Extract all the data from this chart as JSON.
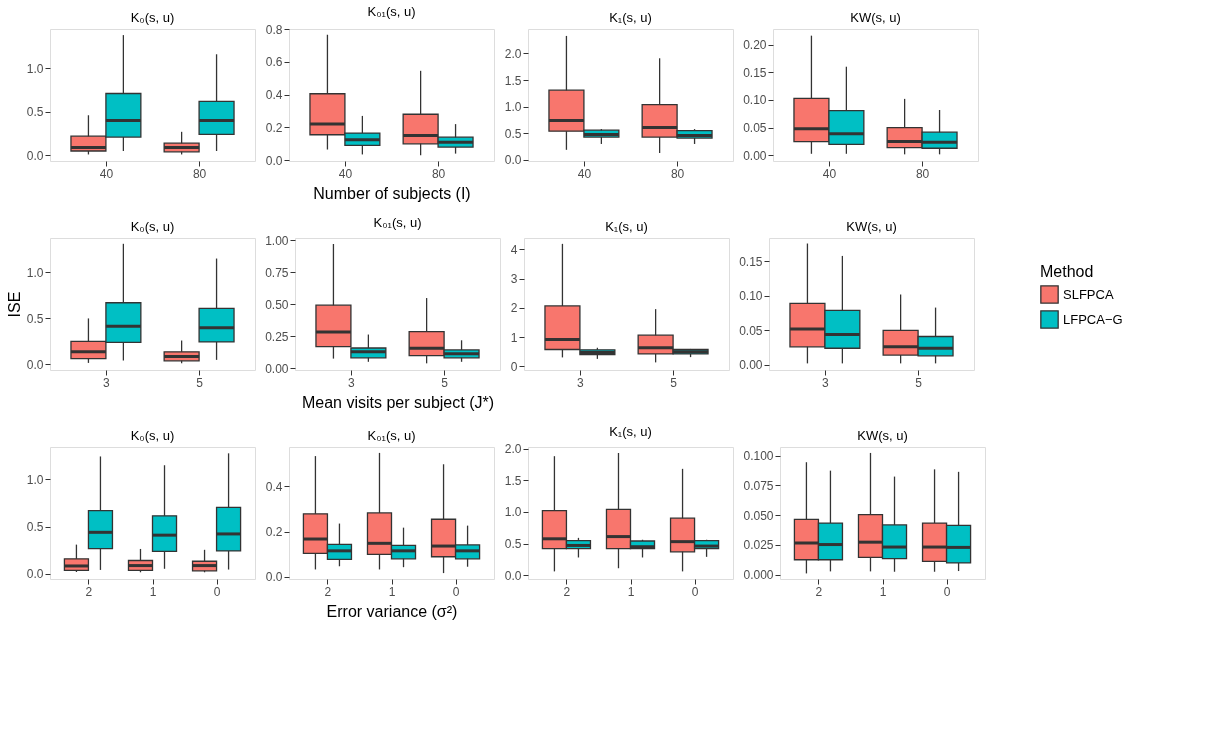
{
  "chart_data": [
    {
      "type": "box",
      "title": "K₀(s, u)",
      "legend": "right",
      "legend_title": "Method",
      "categories": [
        "40",
        "80"
      ],
      "ylim": [
        -0.065,
        1.45
      ],
      "yticks": [
        {
          "value": 0,
          "label": "0.0"
        },
        0.5,
        {
          "value": 1,
          "label": "1.0"
        }
      ],
      "series": [
        {
          "name": "SLFPCA",
          "color": "#f8766d",
          "boxes": [
            {
              "low": 0.01,
              "q1": 0.05,
              "median": 0.09,
              "q3": 0.22,
              "high": 0.46
            },
            {
              "low": 0.01,
              "q1": 0.04,
              "median": 0.09,
              "q3": 0.14,
              "high": 0.27
            }
          ]
        },
        {
          "name": "LFPCA−G",
          "color": "#00bfc4",
          "boxes": [
            {
              "low": 0.05,
              "q1": 0.21,
              "median": 0.4,
              "q3": 0.71,
              "high": 1.38
            },
            {
              "low": 0.05,
              "q1": 0.24,
              "median": 0.4,
              "q3": 0.62,
              "high": 1.16
            }
          ]
        }
      ]
    },
    {
      "type": "box",
      "title": "K₀₁(s, u)",
      "xlabel": "Number of subjects (I)",
      "categories": [
        "40",
        "80"
      ],
      "ylim": [
        -0.005,
        0.8
      ],
      "yticks": [
        {
          "value": 0,
          "label": "0.0"
        },
        0.2,
        0.4,
        0.6,
        0.8
      ],
      "series": [
        {
          "name": "SLFPCA",
          "color": "#f8766d",
          "boxes": [
            {
              "low": 0.065,
              "q1": 0.155,
              "median": 0.22,
              "q3": 0.405,
              "high": 0.765
            },
            {
              "low": 0.03,
              "q1": 0.1,
              "median": 0.15,
              "q3": 0.28,
              "high": 0.545
            }
          ]
        },
        {
          "name": "LFPCA−G",
          "color": "#00bfc4",
          "boxes": [
            {
              "low": 0.035,
              "q1": 0.09,
              "median": 0.125,
              "q3": 0.165,
              "high": 0.27
            },
            {
              "low": 0.04,
              "q1": 0.08,
              "median": 0.11,
              "q3": 0.14,
              "high": 0.22
            }
          ]
        }
      ]
    },
    {
      "type": "box",
      "title": "K₁(s, u)",
      "categories": [
        "40",
        "80"
      ],
      "ylim": [
        -0.02,
        2.46
      ],
      "yticks": [
        {
          "value": 0,
          "label": "0.0"
        },
        0.5,
        {
          "value": 1,
          "label": "1.0"
        },
        1.5,
        {
          "value": 2,
          "label": "2.0"
        }
      ],
      "series": [
        {
          "name": "SLFPCA",
          "color": "#f8766d",
          "boxes": [
            {
              "low": 0.19,
              "q1": 0.54,
              "median": 0.74,
              "q3": 1.31,
              "high": 2.33
            },
            {
              "low": 0.13,
              "q1": 0.43,
              "median": 0.61,
              "q3": 1.04,
              "high": 1.91
            }
          ]
        },
        {
          "name": "LFPCA−G",
          "color": "#00bfc4",
          "boxes": [
            {
              "low": 0.3,
              "q1": 0.43,
              "median": 0.48,
              "q3": 0.56,
              "high": 0.58
            },
            {
              "low": 0.3,
              "q1": 0.41,
              "median": 0.46,
              "q3": 0.55,
              "high": 0.58
            }
          ]
        }
      ]
    },
    {
      "type": "box",
      "title": "KW(s, u)",
      "categories": [
        "40",
        "80"
      ],
      "ylim": [
        -0.01,
        0.228
      ],
      "yticks": [
        {
          "value": 0,
          "label": "0.00"
        },
        0.05,
        {
          "value": 0.1,
          "label": "0.10"
        },
        0.15,
        {
          "value": 0.2,
          "label": "0.20"
        }
      ],
      "series": [
        {
          "name": "SLFPCA",
          "color": "#f8766d",
          "boxes": [
            {
              "low": 0.003,
              "q1": 0.025,
              "median": 0.048,
              "q3": 0.103,
              "high": 0.216
            },
            {
              "low": 0.002,
              "q1": 0.014,
              "median": 0.025,
              "q3": 0.05,
              "high": 0.102
            }
          ]
        },
        {
          "name": "LFPCA−G",
          "color": "#00bfc4",
          "boxes": [
            {
              "low": 0.003,
              "q1": 0.02,
              "median": 0.039,
              "q3": 0.081,
              "high": 0.16
            },
            {
              "low": 0.002,
              "q1": 0.013,
              "median": 0.024,
              "q3": 0.042,
              "high": 0.082
            }
          ]
        }
      ]
    },
    {
      "type": "box",
      "title": "K₀(s, u)",
      "ylabel": "ISE",
      "categories": [
        "3",
        "5"
      ],
      "ylim": [
        -0.06,
        1.373
      ],
      "yticks": [
        {
          "value": 0,
          "label": "0.0"
        },
        0.5,
        {
          "value": 1,
          "label": "1.0"
        }
      ],
      "series": [
        {
          "name": "SLFPCA",
          "color": "#f8766d",
          "boxes": [
            {
              "low": 0.017,
              "q1": 0.064,
              "median": 0.137,
              "q3": 0.25,
              "high": 0.5
            },
            {
              "low": 0.013,
              "q1": 0.04,
              "median": 0.086,
              "q3": 0.137,
              "high": 0.26
            }
          ]
        },
        {
          "name": "LFPCA−G",
          "color": "#00bfc4",
          "boxes": [
            {
              "low": 0.043,
              "q1": 0.24,
              "median": 0.416,
              "q3": 0.67,
              "high": 1.31
            },
            {
              "low": 0.05,
              "q1": 0.245,
              "median": 0.4,
              "q3": 0.61,
              "high": 1.15
            }
          ]
        }
      ]
    },
    {
      "type": "box",
      "title": "K₀₁(s, u)",
      "xlabel": "Mean visits per subject (J*)",
      "categories": [
        "3",
        "5"
      ],
      "ylim": [
        -0.012,
        1.019
      ],
      "yticks": [
        {
          "value": 0,
          "label": "0.00"
        },
        0.25,
        {
          "value": 0.5,
          "label": "0.50"
        },
        0.75,
        {
          "value": 1,
          "label": "1.00"
        }
      ],
      "series": [
        {
          "name": "SLFPCA",
          "color": "#f8766d",
          "boxes": [
            {
              "low": 0.077,
              "q1": 0.17,
              "median": 0.284,
              "q3": 0.494,
              "high": 0.972
            },
            {
              "low": 0.04,
              "q1": 0.1,
              "median": 0.157,
              "q3": 0.287,
              "high": 0.55
            }
          ]
        },
        {
          "name": "LFPCA−G",
          "color": "#00bfc4",
          "boxes": [
            {
              "low": 0.052,
              "q1": 0.083,
              "median": 0.13,
              "q3": 0.16,
              "high": 0.265
            },
            {
              "low": 0.052,
              "q1": 0.083,
              "median": 0.114,
              "q3": 0.145,
              "high": 0.22
            }
          ]
        }
      ]
    },
    {
      "type": "box",
      "title": "K₁(s, u)",
      "categories": [
        "3",
        "5"
      ],
      "ylim": [
        -0.12,
        4.39
      ],
      "yticks": [
        0,
        1,
        2,
        3,
        4
      ],
      "series": [
        {
          "name": "SLFPCA",
          "color": "#f8766d",
          "boxes": [
            {
              "low": 0.31,
              "q1": 0.58,
              "median": 0.92,
              "q3": 2.07,
              "high": 4.19
            },
            {
              "low": 0.14,
              "q1": 0.43,
              "median": 0.64,
              "q3": 1.07,
              "high": 1.96
            }
          ]
        },
        {
          "name": "LFPCA−G",
          "color": "#00bfc4",
          "boxes": [
            {
              "low": 0.26,
              "q1": 0.41,
              "median": 0.48,
              "q3": 0.57,
              "high": 0.64
            },
            {
              "low": 0.32,
              "q1": 0.43,
              "median": 0.5,
              "q3": 0.58,
              "high": 0.6
            }
          ]
        }
      ]
    },
    {
      "type": "box",
      "title": "KW(s, u)",
      "categories": [
        "3",
        "5"
      ],
      "ylim": [
        -0.0076,
        0.184
      ],
      "yticks": [
        {
          "value": 0,
          "label": "0.00"
        },
        0.05,
        {
          "value": 0.1,
          "label": "0.10"
        },
        0.15
      ],
      "series": [
        {
          "name": "SLFPCA",
          "color": "#f8766d",
          "boxes": [
            {
              "low": 0.002,
              "q1": 0.026,
              "median": 0.052,
              "q3": 0.089,
              "high": 0.176
            },
            {
              "low": 0.002,
              "q1": 0.014,
              "median": 0.026,
              "q3": 0.05,
              "high": 0.102
            }
          ]
        },
        {
          "name": "LFPCA−G",
          "color": "#00bfc4",
          "boxes": [
            {
              "low": 0.002,
              "q1": 0.024,
              "median": 0.044,
              "q3": 0.079,
              "high": 0.158
            },
            {
              "low": 0.002,
              "q1": 0.013,
              "median": 0.024,
              "q3": 0.041,
              "high": 0.083
            }
          ]
        }
      ]
    },
    {
      "type": "box",
      "title": "K₀(s, u)",
      "categories": [
        "2",
        "1",
        "0"
      ],
      "ylim": [
        -0.054,
        1.343
      ],
      "yticks": [
        {
          "value": 0,
          "label": "0.0"
        },
        0.5,
        {
          "value": 1,
          "label": "1.0"
        }
      ],
      "series": [
        {
          "name": "SLFPCA",
          "color": "#f8766d",
          "boxes": [
            {
              "low": 0.02,
              "q1": 0.037,
              "median": 0.084,
              "q3": 0.16,
              "high": 0.31
            },
            {
              "low": 0.017,
              "q1": 0.037,
              "median": 0.088,
              "q3": 0.142,
              "high": 0.264
            },
            {
              "low": 0.017,
              "q1": 0.033,
              "median": 0.088,
              "q3": 0.134,
              "high": 0.255
            }
          ]
        },
        {
          "name": "LFPCA−G",
          "color": "#00bfc4",
          "boxes": [
            {
              "low": 0.042,
              "q1": 0.268,
              "median": 0.44,
              "q3": 0.67,
              "high": 1.243
            },
            {
              "low": 0.054,
              "q1": 0.238,
              "median": 0.41,
              "q3": 0.615,
              "high": 1.15
            },
            {
              "low": 0.046,
              "q1": 0.243,
              "median": 0.423,
              "q3": 0.703,
              "high": 1.276
            }
          ]
        }
      ]
    },
    {
      "type": "box",
      "title": "K₀₁(s, u)",
      "xlabel": "Error variance (σ²)",
      "categories": [
        "2",
        "1",
        "0"
      ],
      "ylim": [
        -0.009,
        0.572
      ],
      "yticks": [
        {
          "value": 0,
          "label": "0.0"
        },
        0.2,
        0.4
      ],
      "series": [
        {
          "name": "SLFPCA",
          "color": "#f8766d",
          "boxes": [
            {
              "low": 0.033,
              "q1": 0.104,
              "median": 0.167,
              "q3": 0.278,
              "high": 0.532
            },
            {
              "low": 0.033,
              "q1": 0.099,
              "median": 0.148,
              "q3": 0.282,
              "high": 0.546
            },
            {
              "low": 0.017,
              "q1": 0.089,
              "median": 0.136,
              "q3": 0.254,
              "high": 0.496
            }
          ]
        },
        {
          "name": "LFPCA−G",
          "color": "#00bfc4",
          "boxes": [
            {
              "low": 0.047,
              "q1": 0.077,
              "median": 0.115,
              "q3": 0.143,
              "high": 0.235
            },
            {
              "low": 0.043,
              "q1": 0.08,
              "median": 0.115,
              "q3": 0.139,
              "high": 0.217
            },
            {
              "low": 0.045,
              "q1": 0.08,
              "median": 0.115,
              "q3": 0.141,
              "high": 0.226
            }
          ]
        }
      ]
    },
    {
      "type": "box",
      "title": "K₁(s, u)",
      "categories": [
        "2",
        "1",
        "0"
      ],
      "ylim": [
        -0.06,
        2.025
      ],
      "yticks": [
        {
          "value": 0,
          "label": "0.0"
        },
        0.5,
        {
          "value": 1,
          "label": "1.0"
        },
        1.5,
        {
          "value": 2,
          "label": "2.0"
        }
      ],
      "series": [
        {
          "name": "SLFPCA",
          "color": "#f8766d",
          "boxes": [
            {
              "low": 0.06,
              "q1": 0.42,
              "median": 0.575,
              "q3": 1.02,
              "high": 1.88
            },
            {
              "low": 0.11,
              "q1": 0.42,
              "median": 0.61,
              "q3": 1.04,
              "high": 1.93
            },
            {
              "low": 0.06,
              "q1": 0.37,
              "median": 0.53,
              "q3": 0.9,
              "high": 1.68
            }
          ]
        },
        {
          "name": "LFPCA−G",
          "color": "#00bfc4",
          "boxes": [
            {
              "low": 0.28,
              "q1": 0.42,
              "median": 0.47,
              "q3": 0.545,
              "high": 0.59
            },
            {
              "low": 0.28,
              "q1": 0.42,
              "median": 0.45,
              "q3": 0.54,
              "high": 0.56
            },
            {
              "low": 0.29,
              "q1": 0.42,
              "median": 0.46,
              "q3": 0.545,
              "high": 0.56
            }
          ]
        }
      ]
    },
    {
      "type": "box",
      "title": "KW(s, u)",
      "categories": [
        "2",
        "1",
        "0"
      ],
      "ylim": [
        -0.0037,
        0.1074
      ],
      "yticks": [
        {
          "value": 0,
          "label": "0.000"
        },
        0.025,
        {
          "value": 0.05,
          "label": "0.050"
        },
        0.075,
        {
          "value": 0.1,
          "label": "0.100"
        }
      ],
      "series": [
        {
          "name": "SLFPCA",
          "color": "#f8766d",
          "boxes": [
            {
              "low": 0.001,
              "q1": 0.0125,
              "median": 0.0266,
              "q3": 0.0465,
              "high": 0.0946
            },
            {
              "low": 0.0027,
              "q1": 0.0145,
              "median": 0.0273,
              "q3": 0.0505,
              "high": 0.1024
            },
            {
              "low": 0.0024,
              "q1": 0.0111,
              "median": 0.0232,
              "q3": 0.0434,
              "high": 0.0886
            }
          ]
        },
        {
          "name": "LFPCA−G",
          "color": "#00bfc4",
          "boxes": [
            {
              "low": 0.0027,
              "q1": 0.0125,
              "median": 0.0253,
              "q3": 0.0434,
              "high": 0.0875
            },
            {
              "low": 0.0024,
              "q1": 0.0135,
              "median": 0.0232,
              "q3": 0.0418,
              "high": 0.0825
            },
            {
              "low": 0.003,
              "q1": 0.0098,
              "median": 0.0229,
              "q3": 0.0414,
              "high": 0.0865
            }
          ]
        }
      ]
    }
  ]
}
